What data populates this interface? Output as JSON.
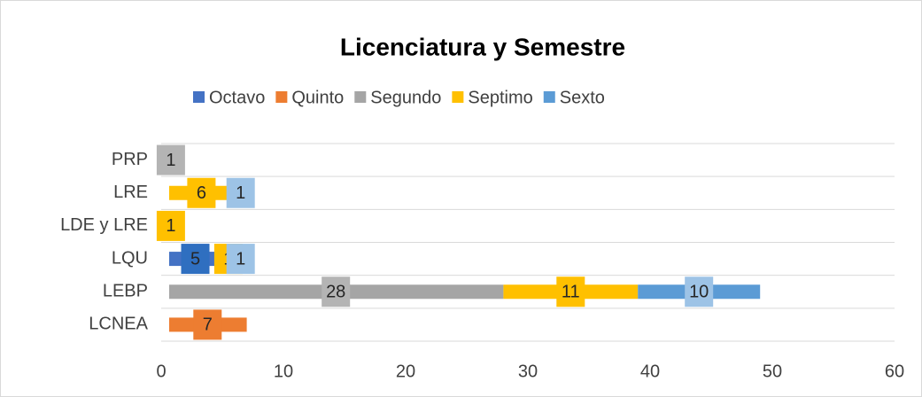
{
  "chart_data": {
    "type": "stacked-bar-horizontal",
    "title": "Licenciatura y Semestre",
    "categories": [
      "LCNEA",
      "LEBP",
      "LQU",
      "LDE y LRE",
      "LRE",
      "PRP"
    ],
    "series": [
      {
        "name": "Octavo",
        "color": "#4472c4",
        "label_color": "#2f6fc0",
        "values": [
          null,
          null,
          5,
          null,
          null,
          null
        ]
      },
      {
        "name": "Quinto",
        "color": "#ed7d31",
        "label_color": "#ed7d31",
        "values": [
          7,
          null,
          null,
          null,
          null,
          null
        ]
      },
      {
        "name": "Segundo",
        "color": "#a5a5a5",
        "label_color": "#b4b4b4",
        "values": [
          null,
          28,
          null,
          null,
          null,
          1
        ]
      },
      {
        "name": "Septimo",
        "color": "#ffc000",
        "label_color": "#ffc000",
        "values": [
          null,
          11,
          1,
          1,
          6,
          null
        ]
      },
      {
        "name": "Sexto",
        "color": "#5b9bd5",
        "label_color": "#9dc3e6",
        "values": [
          null,
          10,
          1,
          null,
          1,
          null
        ]
      }
    ],
    "xlim": [
      0,
      60
    ],
    "xticks": [
      0,
      10,
      20,
      30,
      40,
      50,
      60
    ],
    "legend": "top"
  }
}
